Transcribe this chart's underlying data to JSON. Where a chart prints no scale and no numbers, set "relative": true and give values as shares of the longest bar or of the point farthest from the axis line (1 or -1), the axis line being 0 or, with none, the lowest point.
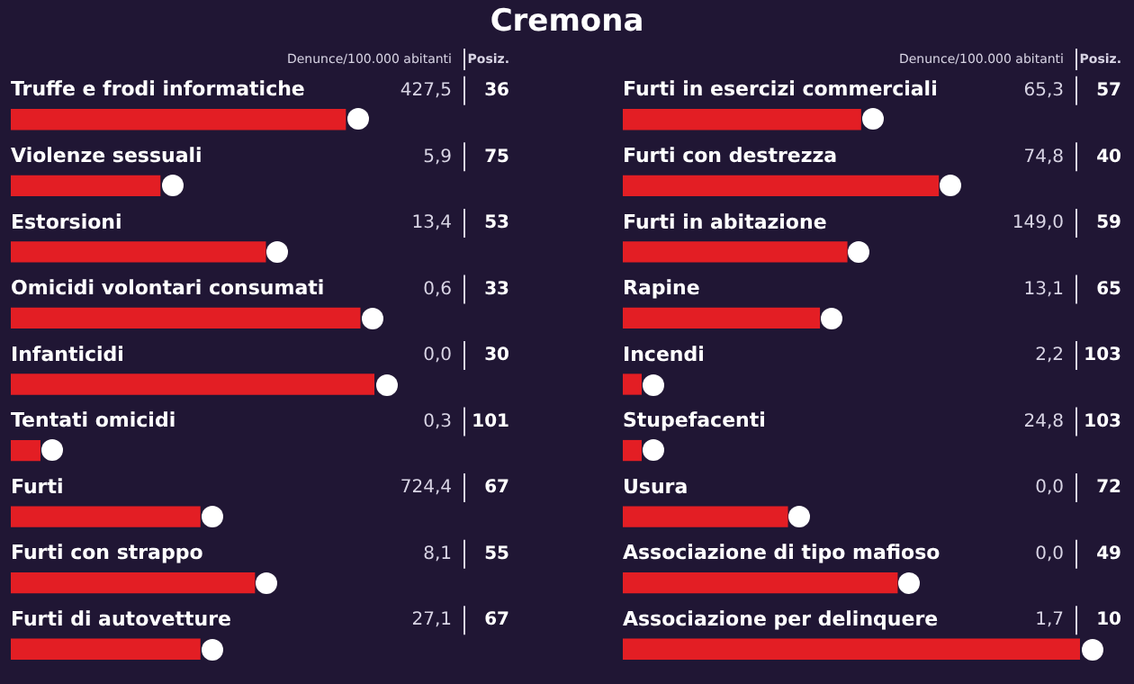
{
  "chart_data": [
    {
      "type": "other",
      "title": "Cremona"
    },
    {
      "type": "bar",
      "orientation": "horizontal",
      "relative": true,
      "color": "#e31e24",
      "categories": [
        "Truffe e frodi informatiche",
        "Violenze sessuali",
        "Estorsioni",
        "Omicidi volontari consumati",
        "Infanticidi",
        "Tentati omicidi",
        "Furti",
        "Furti con strappo",
        "Furti di autovetture"
      ],
      "values": [
        0.92,
        0.41,
        0.7,
        0.96,
        1,
        0.08,
        0.52,
        0.67,
        0.52
      ],
      "annotations": [
        "Denunce/100.000 abitanti",
        "Posiz.",
        "427,5",
        "5,9",
        "13,4",
        "0,6",
        "0,0",
        "0,3",
        "724,4",
        "8,1",
        "27,1",
        "36",
        "75",
        "53",
        "33",
        "30",
        "101",
        "67",
        "55",
        "67"
      ]
    },
    {
      "type": "bar",
      "orientation": "horizontal",
      "relative": true,
      "color": "#e31e24",
      "categories": [
        "Furti in esercizi commerciali",
        "Furti con destrezza",
        "Furti in abitazione",
        "Rapine",
        "Incendi",
        "Stupefacenti",
        "Usura",
        "Associazione di tipo mafioso",
        "Associazione per delinquere"
      ],
      "values": [
        0.52,
        0.69,
        0.49,
        0.43,
        0.04,
        0.04,
        0.36,
        0.6,
        1
      ],
      "annotations": [
        "Denunce/100.000 abitanti",
        "Posiz.",
        "65,3",
        "74,8",
        "149,0",
        "13,1",
        "2,2",
        "24,8",
        "0,0",
        "0,0",
        "1,7",
        "57",
        "40",
        "59",
        "65",
        "103",
        "103",
        "72",
        "49",
        "10"
      ]
    }
  ]
}
